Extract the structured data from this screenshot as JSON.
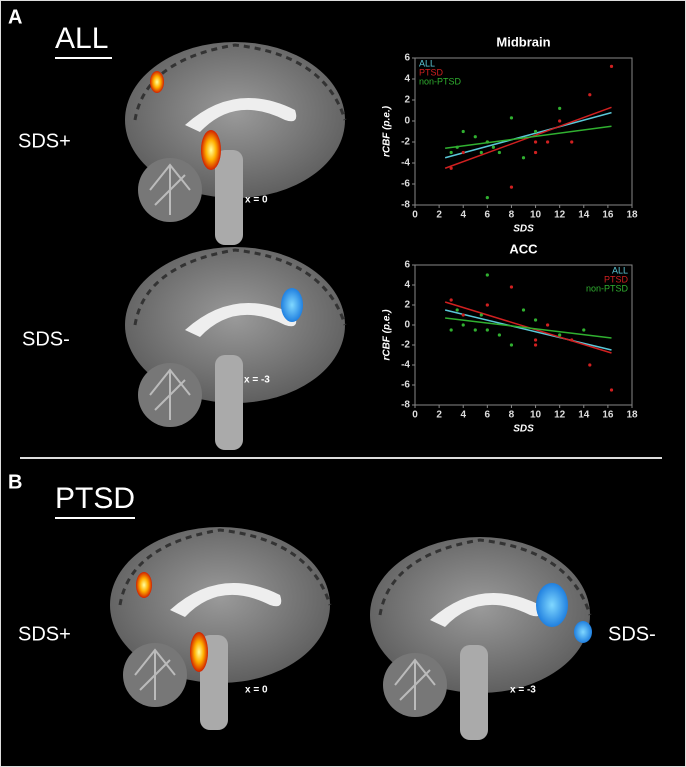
{
  "panels": [
    {
      "label": "A",
      "title": "ALL",
      "notes": [
        "SDS+",
        "x = 0",
        "SDS-",
        "x = -3"
      ]
    },
    {
      "label": "B",
      "title": "PTSD",
      "notes": [
        "SDS+",
        "x = 0",
        "SDS-",
        "x = -3"
      ]
    }
  ],
  "chart_data": [
    {
      "type": "scatter",
      "title": "Midbrain",
      "x_label": "SDS",
      "y_label": "rCBF (p.e.)",
      "xlim": [
        0,
        18
      ],
      "xticks": [
        0,
        2,
        4,
        6,
        8,
        10,
        12,
        14,
        16,
        18
      ],
      "ylim": [
        -8,
        6
      ],
      "yticks": [
        -8,
        -6,
        -4,
        -2,
        0,
        2,
        4,
        6
      ],
      "legend": "upper left",
      "series": [
        {
          "name": "ALL",
          "color": "#5bc8d8",
          "trend": {
            "x": [
              2.5,
              16.3
            ],
            "values": [
              -3.5,
              0.8
            ]
          }
        },
        {
          "name": "PTSD",
          "color": "#d02020",
          "x": [
            3,
            4,
            6,
            8,
            10,
            10,
            11,
            12,
            13,
            14.5,
            16.3
          ],
          "values": [
            -4.5,
            -3,
            -2,
            -6.3,
            -3,
            -2,
            -2,
            0,
            -2,
            2.5,
            5.2
          ],
          "trend": {
            "x": [
              2.5,
              16.3
            ],
            "values": [
              -4.5,
              1.3
            ]
          }
        },
        {
          "name": "non-PTSD",
          "color": "#30b030",
          "x": [
            3,
            3.5,
            4,
            5,
            5.5,
            6,
            6,
            6.5,
            7,
            8,
            9,
            10,
            12
          ],
          "values": [
            -3,
            -2.5,
            -1,
            -1.5,
            -3,
            -7.3,
            -2,
            -2.5,
            -3,
            0.3,
            -3.5,
            -1,
            1.2
          ],
          "trend": {
            "x": [
              2.5,
              16.3
            ],
            "values": [
              -2.6,
              -0.5
            ]
          }
        }
      ]
    },
    {
      "type": "scatter",
      "title": "ACC",
      "x_label": "SDS",
      "y_label": "rCBF (p.e.)",
      "xlim": [
        0,
        18
      ],
      "xticks": [
        0,
        2,
        4,
        6,
        8,
        10,
        12,
        14,
        16,
        18
      ],
      "ylim": [
        -8,
        6
      ],
      "yticks": [
        -8,
        -6,
        -4,
        -2,
        0,
        2,
        4,
        6
      ],
      "legend": "upper right",
      "series": [
        {
          "name": "ALL",
          "color": "#5bc8d8",
          "trend": {
            "x": [
              2.5,
              16.3
            ],
            "values": [
              1.5,
              -2.5
            ]
          }
        },
        {
          "name": "PTSD",
          "color": "#d02020",
          "x": [
            3,
            4,
            6,
            8,
            10,
            10,
            11,
            13,
            14.5,
            16.3
          ],
          "values": [
            2.5,
            1,
            2,
            3.8,
            -1.5,
            -2,
            0,
            -1.5,
            -4,
            -6.5
          ],
          "trend": {
            "x": [
              2.5,
              16.3
            ],
            "values": [
              2.3,
              -2.8
            ]
          }
        },
        {
          "name": "non-PTSD",
          "color": "#30b030",
          "x": [
            3,
            3.5,
            4,
            5,
            5.5,
            6,
            6,
            7,
            8,
            9,
            10,
            12,
            14
          ],
          "values": [
            -0.5,
            1.5,
            0,
            -0.5,
            1,
            5,
            -0.5,
            -1,
            -2,
            1.5,
            0.5,
            -1,
            -0.5
          ],
          "trend": {
            "x": [
              2.5,
              16.3
            ],
            "values": [
              0.7,
              -1.3
            ]
          }
        }
      ]
    }
  ]
}
